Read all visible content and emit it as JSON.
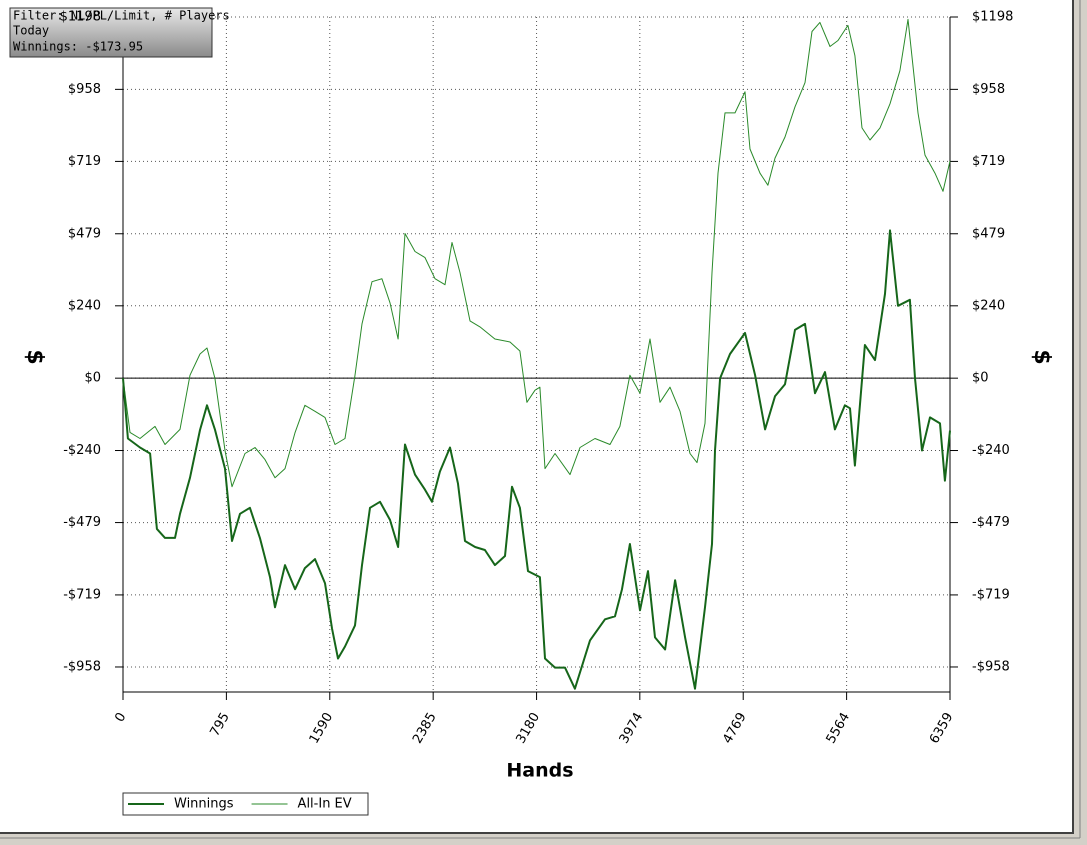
{
  "chart_data": {
    "type": "line",
    "annotations": [
      "Filter: NL/PL/Limit, # Players",
      "Today",
      "Winnings: -$173.95"
    ],
    "xlabel": "Hands",
    "ylabel": "$",
    "xlim": [
      0,
      6359
    ],
    "xticks": [
      0,
      795,
      1590,
      2385,
      3180,
      3974,
      4769,
      5564,
      6359
    ],
    "ylim": [
      -1041,
      1198
    ],
    "yticks": [
      {
        "value": 1198,
        "label": "$1198"
      },
      {
        "value": 958,
        "label": "$958"
      },
      {
        "value": 719,
        "label": "$719"
      },
      {
        "value": 479,
        "label": "$479"
      },
      {
        "value": 240,
        "label": "$240"
      },
      {
        "value": 0,
        "label": "$0"
      },
      {
        "value": -240,
        "label": "-$240"
      },
      {
        "value": -479,
        "label": "-$479"
      },
      {
        "value": -719,
        "label": "-$719"
      },
      {
        "value": -958,
        "label": "-$958"
      }
    ],
    "grid": true,
    "legend": "bottom-left",
    "series": [
      {
        "name": "Winnings",
        "color": "#16661a",
        "x": [
          0,
          38,
          131,
          208,
          261,
          323,
          400,
          438,
          515,
          592,
          646,
          707,
          784,
          838,
          900,
          976,
          1053,
          1130,
          1169,
          1246,
          1323,
          1399,
          1476,
          1553,
          1607,
          1653,
          1707,
          1784,
          1838,
          1899,
          1976,
          2053,
          2115,
          2168,
          2245,
          2322,
          2376,
          2437,
          2514,
          2576,
          2630,
          2707,
          2783,
          2860,
          2937,
          2991,
          3052,
          3114,
          3206,
          3245,
          3322,
          3399,
          3475,
          3591,
          3706,
          3783,
          3837,
          3898,
          3975,
          4037,
          4091,
          4168,
          4245,
          4322,
          4398,
          4475,
          4529,
          4552,
          4591,
          4667,
          4783,
          4860,
          4937,
          5013,
          5090,
          5167,
          5244,
          5321,
          5398,
          5474,
          5551,
          5590,
          5628,
          5705,
          5782,
          5859,
          5898,
          5959,
          6051,
          6090,
          6144,
          6205,
          6282,
          6320,
          6359
        ],
        "values": [
          0,
          -200,
          -230,
          -250,
          -500,
          -530,
          -530,
          -450,
          -330,
          -172,
          -90,
          -170,
          -300,
          -540,
          -450,
          -430,
          -530,
          -660,
          -760,
          -620,
          -700,
          -630,
          -600,
          -680,
          -830,
          -930,
          -890,
          -820,
          -620,
          -430,
          -410,
          -470,
          -560,
          -220,
          -320,
          -370,
          -410,
          -310,
          -230,
          -350,
          -540,
          -560,
          -570,
          -620,
          -590,
          -360,
          -430,
          -640,
          -660,
          -930,
          -960,
          -960,
          -1030,
          -870,
          -800,
          -790,
          -700,
          -550,
          -770,
          -640,
          -860,
          -900,
          -670,
          -860,
          -1030,
          -760,
          -550,
          -240,
          0,
          80,
          150,
          10,
          -170,
          -60,
          -20,
          160,
          180,
          -50,
          20,
          -170,
          -90,
          -100,
          -290,
          110,
          60,
          280,
          490,
          240,
          260,
          0,
          -240,
          -130,
          -150,
          -340,
          -174
        ]
      },
      {
        "name": "All-In EV",
        "color": "#2a8a2a",
        "x": [
          0,
          54,
          131,
          246,
          323,
          438,
          515,
          592,
          646,
          707,
          784,
          838,
          938,
          1015,
          1092,
          1169,
          1246,
          1323,
          1399,
          1476,
          1553,
          1630,
          1707,
          1784,
          1838,
          1915,
          1991,
          2053,
          2115,
          2168,
          2245,
          2322,
          2399,
          2476,
          2530,
          2591,
          2668,
          2745,
          2860,
          2976,
          3052,
          3106,
          3168,
          3206,
          3245,
          3322,
          3437,
          3514,
          3629,
          3745,
          3821,
          3898,
          3975,
          4052,
          4129,
          4206,
          4283,
          4360,
          4414,
          4475,
          4529,
          4575,
          4629,
          4706,
          4783,
          4821,
          4898,
          4959,
          5013,
          5090,
          5167,
          5244,
          5298,
          5359,
          5436,
          5498,
          5574,
          5628,
          5682,
          5744,
          5821,
          5898,
          5974,
          6036,
          6113,
          6167,
          6244,
          6305,
          6359
        ],
        "values": [
          0,
          -180,
          -200,
          -160,
          -220,
          -170,
          10,
          80,
          100,
          0,
          -240,
          -360,
          -250,
          -230,
          -270,
          -330,
          -300,
          -180,
          -90,
          -110,
          -130,
          -220,
          -200,
          10,
          180,
          320,
          330,
          250,
          130,
          480,
          420,
          400,
          330,
          310,
          450,
          350,
          190,
          170,
          130,
          120,
          90,
          -80,
          -40,
          -30,
          -300,
          -250,
          -320,
          -230,
          -200,
          -220,
          -160,
          10,
          -50,
          130,
          -80,
          -30,
          -110,
          -250,
          -280,
          -150,
          350,
          680,
          880,
          880,
          950,
          760,
          680,
          640,
          730,
          800,
          900,
          980,
          1150,
          1180,
          1100,
          1120,
          1170,
          1070,
          830,
          790,
          830,
          910,
          1020,
          1190,
          880,
          740,
          680,
          620,
          720
        ]
      }
    ]
  }
}
